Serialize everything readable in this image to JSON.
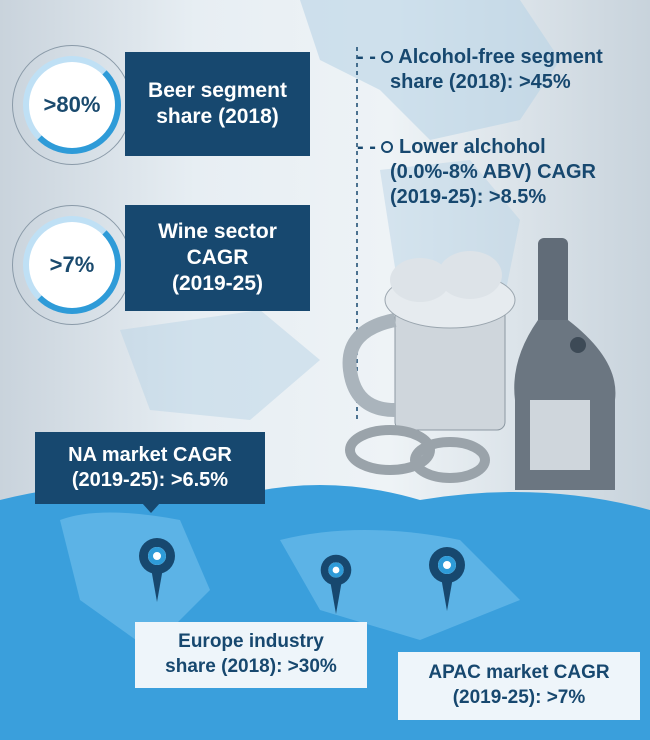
{
  "stats": [
    {
      "value": ">80%",
      "label": "Beer segment share (2018)",
      "label_lines": [
        "Beer segment",
        "share (2018)"
      ]
    },
    {
      "value": ">7%",
      "label": "Wine sector CAGR (2019-25)",
      "label_lines": [
        "Wine sector",
        "CAGR",
        "(2019-25)"
      ]
    }
  ],
  "notes": [
    {
      "lines": [
        "Alcohol-free segment",
        "share (2018): >45%"
      ]
    },
    {
      "lines": [
        "Lower alchohol",
        "(0.0%-8% ABV) CAGR",
        "(2019-25): >8.5%"
      ]
    }
  ],
  "regions": {
    "na": {
      "lines": [
        "NA market CAGR",
        "(2019-25): >6.5%"
      ]
    },
    "europe": {
      "lines": [
        "Europe industry",
        "share (2018): >30%"
      ]
    },
    "apac": {
      "lines": [
        "APAC market CAGR",
        "(2019-25): >7%"
      ]
    }
  },
  "colors": {
    "navy": "#17486f",
    "map_blue": "#3a9fdc",
    "ring_accent": "#2e9bd8"
  }
}
